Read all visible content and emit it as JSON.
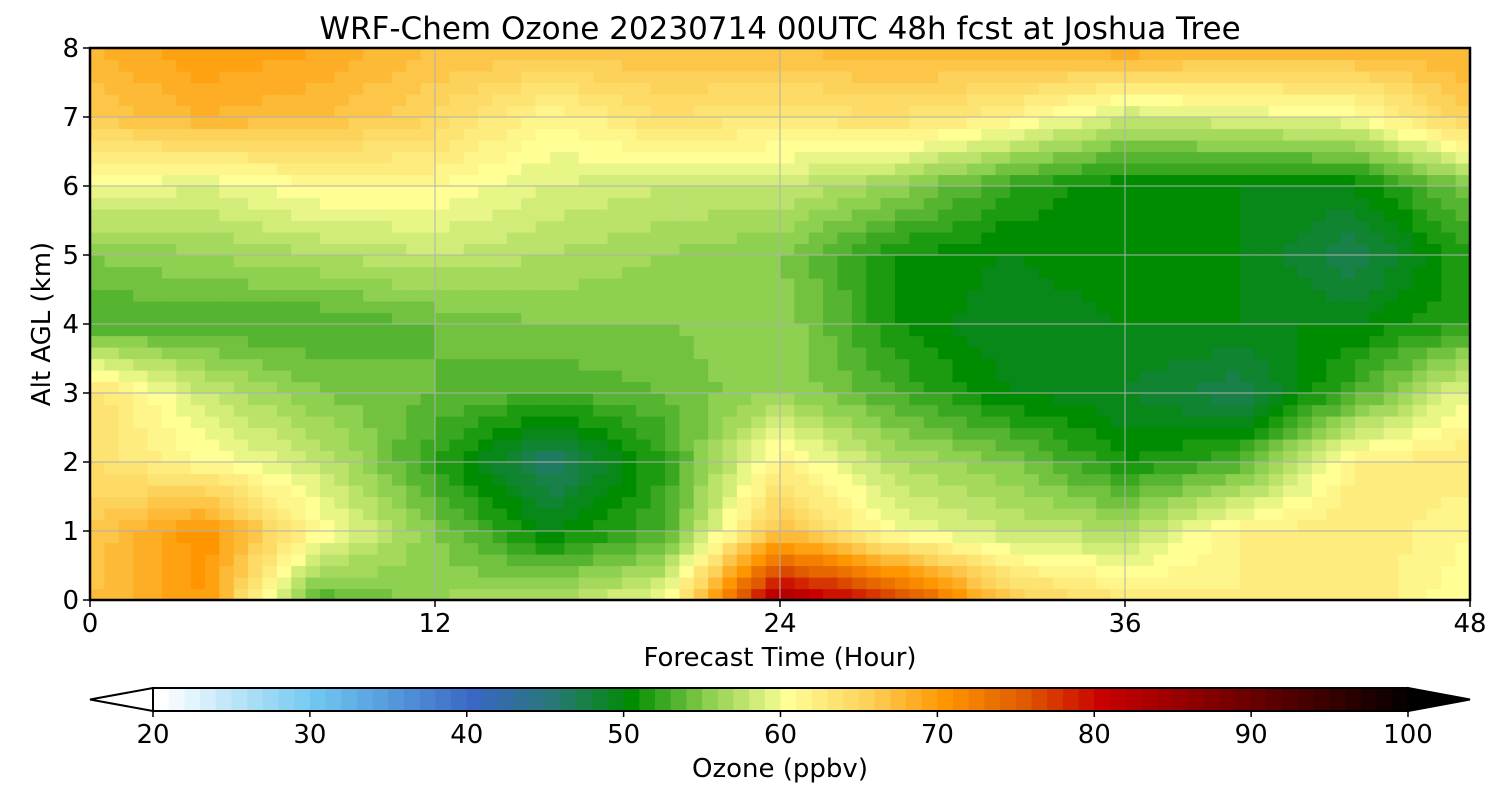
{
  "chart_data": {
    "type": "heatmap",
    "title": "WRF-Chem Ozone  20230714 00UTC 48h fcst at Joshua Tree",
    "xlabel": "Forecast Time (Hour)",
    "ylabel": "Alt AGL (km)",
    "xlim": [
      0,
      48
    ],
    "ylim": [
      0,
      8
    ],
    "xticks": [
      0,
      12,
      24,
      36,
      48
    ],
    "yticks": [
      0,
      1,
      2,
      3,
      4,
      5,
      6,
      7,
      8
    ],
    "grid": true,
    "x": [
      0,
      4,
      8,
      12,
      16,
      20,
      24,
      28,
      32,
      36,
      40,
      44,
      48
    ],
    "y": [
      0,
      1,
      2,
      3,
      4,
      5,
      6,
      7,
      8
    ],
    "z": [
      [
        67,
        70,
        53,
        56,
        57,
        60,
        84,
        78,
        66,
        63,
        62,
        63,
        60
      ],
      [
        66,
        71,
        61,
        55,
        50,
        53,
        67,
        60,
        58,
        57,
        62,
        63,
        61
      ],
      [
        64,
        61,
        58,
        52,
        46,
        52,
        62,
        57,
        55,
        51,
        53,
        62,
        63
      ],
      [
        64,
        58,
        55,
        54,
        53,
        54,
        56,
        53,
        50,
        49,
        47,
        53,
        60
      ],
      [
        53,
        53,
        53,
        54,
        55,
        55,
        56,
        51,
        49,
        50,
        50,
        50,
        52
      ],
      [
        55,
        56,
        57,
        58,
        57,
        56,
        55,
        51,
        50,
        51,
        50,
        47,
        52
      ],
      [
        60,
        59,
        61,
        61,
        59,
        58,
        58,
        56,
        52,
        50,
        50,
        50,
        55
      ],
      [
        66,
        68,
        67,
        65,
        61,
        64,
        63,
        64,
        62,
        58,
        59,
        60,
        66
      ],
      [
        68,
        70,
        69,
        67,
        67,
        67,
        67,
        68,
        68,
        69,
        68,
        68,
        68
      ]
    ],
    "colorbar": {
      "label": "Ozone  (ppbv)",
      "min": 20,
      "max": 100,
      "step": 1,
      "ticks": [
        20,
        30,
        40,
        50,
        60,
        70,
        80,
        90,
        100
      ],
      "extend": "both",
      "stops": [
        {
          "v": 20,
          "c": "#ffffff"
        },
        {
          "v": 30,
          "c": "#6ec6f0"
        },
        {
          "v": 40,
          "c": "#3a66c4"
        },
        {
          "v": 45,
          "c": "#287878"
        },
        {
          "v": 50,
          "c": "#008c00"
        },
        {
          "v": 55,
          "c": "#8ed050"
        },
        {
          "v": 60,
          "c": "#ffff96"
        },
        {
          "v": 65,
          "c": "#fcd25a"
        },
        {
          "v": 70,
          "c": "#ff9600"
        },
        {
          "v": 75,
          "c": "#e05a00"
        },
        {
          "v": 80,
          "c": "#c80000"
        },
        {
          "v": 90,
          "c": "#640000"
        },
        {
          "v": 100,
          "c": "#000000"
        }
      ]
    }
  }
}
